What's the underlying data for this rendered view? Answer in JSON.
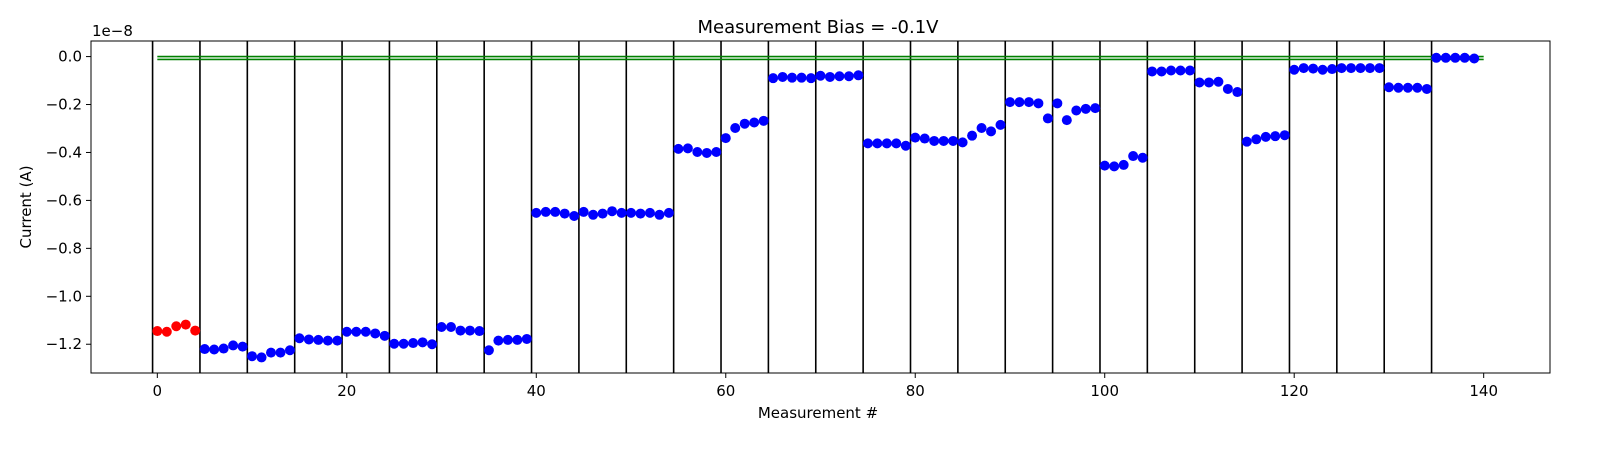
{
  "chart_data": {
    "type": "scatter",
    "title": "Measurement Bias = -0.1V",
    "xlabel": "Measurement #",
    "ylabel": "Current (A)",
    "offset_label": "1e−8",
    "xlim": [
      -7,
      147
    ],
    "ylim": [
      -1.32,
      0.065
    ],
    "y_scale_factor": 1e-08,
    "grid": false,
    "xticks": [
      0,
      20,
      40,
      60,
      80,
      100,
      120,
      140
    ],
    "xtick_labels": [
      "0",
      "20",
      "40",
      "60",
      "80",
      "100",
      "120",
      "140"
    ],
    "yticks": [
      0.0,
      -0.2,
      -0.4,
      -0.6,
      -0.8,
      -1.0,
      -1.2
    ],
    "ytick_labels": [
      "0.0",
      "−0.2",
      "−0.4",
      "−0.6",
      "−0.8",
      "−1.0",
      "−1.2"
    ],
    "vertical_lines_x": [
      -0.5,
      4.5,
      9.5,
      14.5,
      19.5,
      24.5,
      29.5,
      34.5,
      39.5,
      44.5,
      49.5,
      54.5,
      59.5,
      64.5,
      69.5,
      74.5,
      79.5,
      84.5,
      89.5,
      94.5,
      99.5,
      104.5,
      109.5,
      114.5,
      119.5,
      124.5,
      129.5,
      134.5
    ],
    "vertical_line_color": "#000000",
    "horizontal_lines": [
      {
        "y": 0.0,
        "x_range": [
          0,
          140
        ],
        "color": "#008000"
      },
      {
        "y": -0.012,
        "x_range": [
          0,
          140
        ],
        "color": "#008000"
      }
    ],
    "series": [
      {
        "color": "#ff0000",
        "x": [
          0,
          1,
          2,
          3,
          4
        ],
        "y": [
          -1.145,
          -1.148,
          -1.125,
          -1.118,
          -1.143
        ]
      },
      {
        "color": "#0000ff",
        "x": [
          5,
          6,
          7,
          8,
          9,
          10,
          11,
          12,
          13,
          14,
          15,
          16,
          17,
          18,
          19,
          20,
          21,
          22,
          23,
          24,
          25,
          26,
          27,
          28,
          29,
          30,
          31,
          32,
          33,
          34,
          35,
          36,
          37,
          38,
          39,
          40,
          41,
          42,
          43,
          44,
          45,
          46,
          47,
          48,
          49,
          50,
          51,
          52,
          53,
          54,
          55,
          56,
          57,
          58,
          59,
          60,
          61,
          62,
          63,
          64,
          65,
          66,
          67,
          68,
          69,
          70,
          71,
          72,
          73,
          74,
          75,
          76,
          77,
          78,
          79,
          80,
          81,
          82,
          83,
          84,
          85,
          86,
          87,
          88,
          89,
          90,
          91,
          92,
          93,
          94,
          95,
          96,
          97,
          98,
          99,
          100,
          101,
          102,
          103,
          104,
          105,
          106,
          107,
          108,
          109,
          110,
          111,
          112,
          113,
          114,
          115,
          116,
          117,
          118,
          119,
          120,
          121,
          122,
          123,
          124,
          125,
          126,
          127,
          128,
          129,
          130,
          131,
          132,
          133,
          134,
          135,
          136,
          137,
          138,
          139
        ],
        "y": [
          -1.22,
          -1.222,
          -1.218,
          -1.205,
          -1.21,
          -1.25,
          -1.255,
          -1.235,
          -1.235,
          -1.225,
          -1.175,
          -1.18,
          -1.182,
          -1.185,
          -1.185,
          -1.148,
          -1.148,
          -1.148,
          -1.155,
          -1.165,
          -1.198,
          -1.198,
          -1.195,
          -1.192,
          -1.2,
          -1.128,
          -1.128,
          -1.143,
          -1.143,
          -1.145,
          -1.225,
          -1.185,
          -1.182,
          -1.182,
          -1.178,
          -0.652,
          -0.648,
          -0.648,
          -0.655,
          -0.665,
          -0.648,
          -0.66,
          -0.655,
          -0.645,
          -0.652,
          -0.652,
          -0.655,
          -0.652,
          -0.66,
          -0.652,
          -0.385,
          -0.383,
          -0.398,
          -0.402,
          -0.398,
          -0.34,
          -0.298,
          -0.28,
          -0.275,
          -0.268,
          -0.09,
          -0.085,
          -0.088,
          -0.088,
          -0.09,
          -0.08,
          -0.085,
          -0.082,
          -0.082,
          -0.078,
          -0.362,
          -0.362,
          -0.362,
          -0.362,
          -0.372,
          -0.338,
          -0.342,
          -0.352,
          -0.352,
          -0.352,
          -0.358,
          -0.33,
          -0.298,
          -0.312,
          -0.285,
          -0.19,
          -0.19,
          -0.19,
          -0.195,
          -0.258,
          -0.195,
          -0.265,
          -0.225,
          -0.218,
          -0.215,
          -0.455,
          -0.458,
          -0.452,
          -0.415,
          -0.422,
          -0.062,
          -0.062,
          -0.058,
          -0.058,
          -0.058,
          -0.108,
          -0.108,
          -0.105,
          -0.135,
          -0.148,
          -0.355,
          -0.345,
          -0.335,
          -0.332,
          -0.328,
          -0.055,
          -0.048,
          -0.05,
          -0.055,
          -0.052,
          -0.048,
          -0.048,
          -0.048,
          -0.048,
          -0.048,
          -0.128,
          -0.13,
          -0.13,
          -0.13,
          -0.135,
          -0.005,
          -0.005,
          -0.005,
          -0.005,
          -0.008
        ]
      }
    ]
  }
}
